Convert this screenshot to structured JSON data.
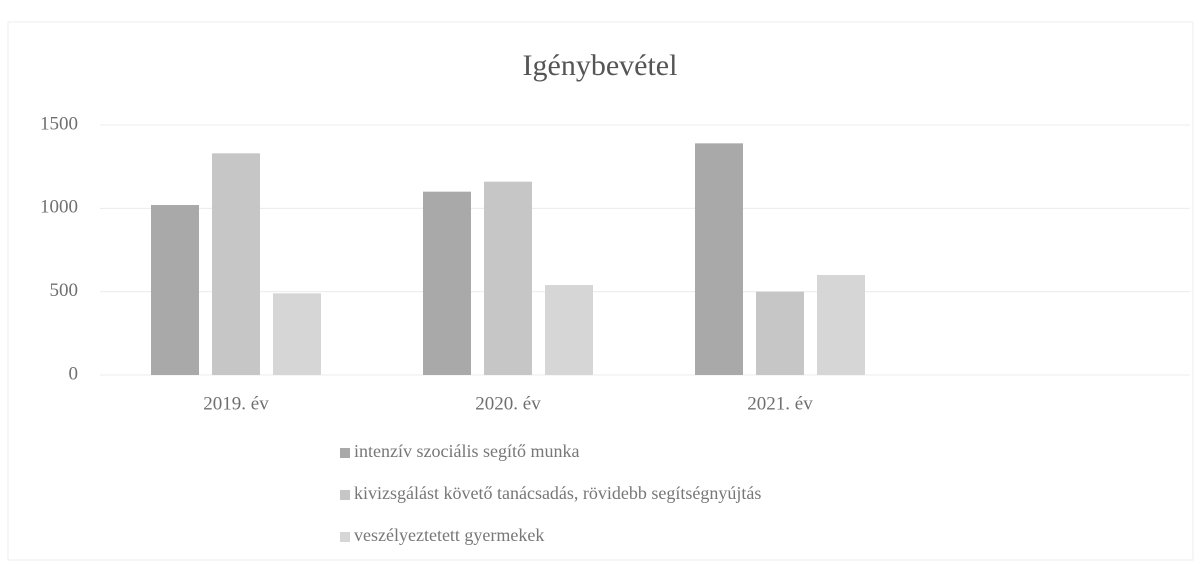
{
  "chart_data": {
    "type": "bar",
    "title": "Igénybevétel",
    "categories": [
      "2019. év",
      "2020. év",
      "2021. év"
    ],
    "series": [
      {
        "name": "intenzív szociális segítő munka",
        "color": "#a9a9a9",
        "values": [
          1020,
          1100,
          1390
        ]
      },
      {
        "name": "kivizsgálást követő tanácsadás, rövidebb segítségnyújtás",
        "color": "#c6c6c6",
        "values": [
          1330,
          1160,
          500
        ]
      },
      {
        "name": "veszélyeztetett gyermekek",
        "color": "#d6d6d6",
        "values": [
          490,
          540,
          600
        ]
      }
    ],
    "ylim": [
      0,
      1500
    ],
    "yticks": [
      0,
      500,
      1000,
      1500
    ],
    "grid": true,
    "legend": "bottom"
  }
}
